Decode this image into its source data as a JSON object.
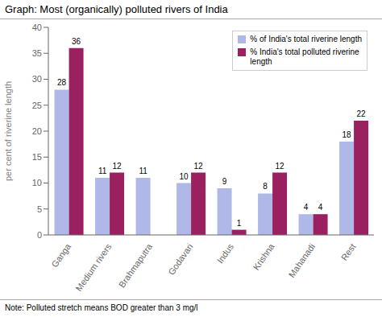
{
  "chart_data": {
    "type": "bar",
    "title": "Graph: Most (organically) polluted rivers of India",
    "annotations": [
      "Note: Polluted stretch means BOD greater than 3 mg/l"
    ],
    "categories": [
      "Ganga",
      "Medium rivers",
      "Brahmaputra",
      "Godavari",
      "Indus",
      "Krishna",
      "Mahanadi",
      "Rest"
    ],
    "series": [
      {
        "name": "% of India's total riverine length",
        "color": "#b0b8e8",
        "values": [
          28,
          11,
          11,
          10,
          9,
          8,
          4,
          18
        ]
      },
      {
        "name": "% India's total polluted riverine\nlength",
        "color": "#9b2060",
        "values": [
          36,
          12,
          0,
          12,
          1,
          12,
          4,
          22
        ]
      }
    ],
    "ylabel": "per cent of riverine length",
    "ylim": [
      0,
      40
    ],
    "yticks": [
      0,
      5,
      10,
      15,
      20,
      25,
      30,
      35,
      40
    ],
    "grid": false,
    "legend": "upper right",
    "data_labels": true
  }
}
